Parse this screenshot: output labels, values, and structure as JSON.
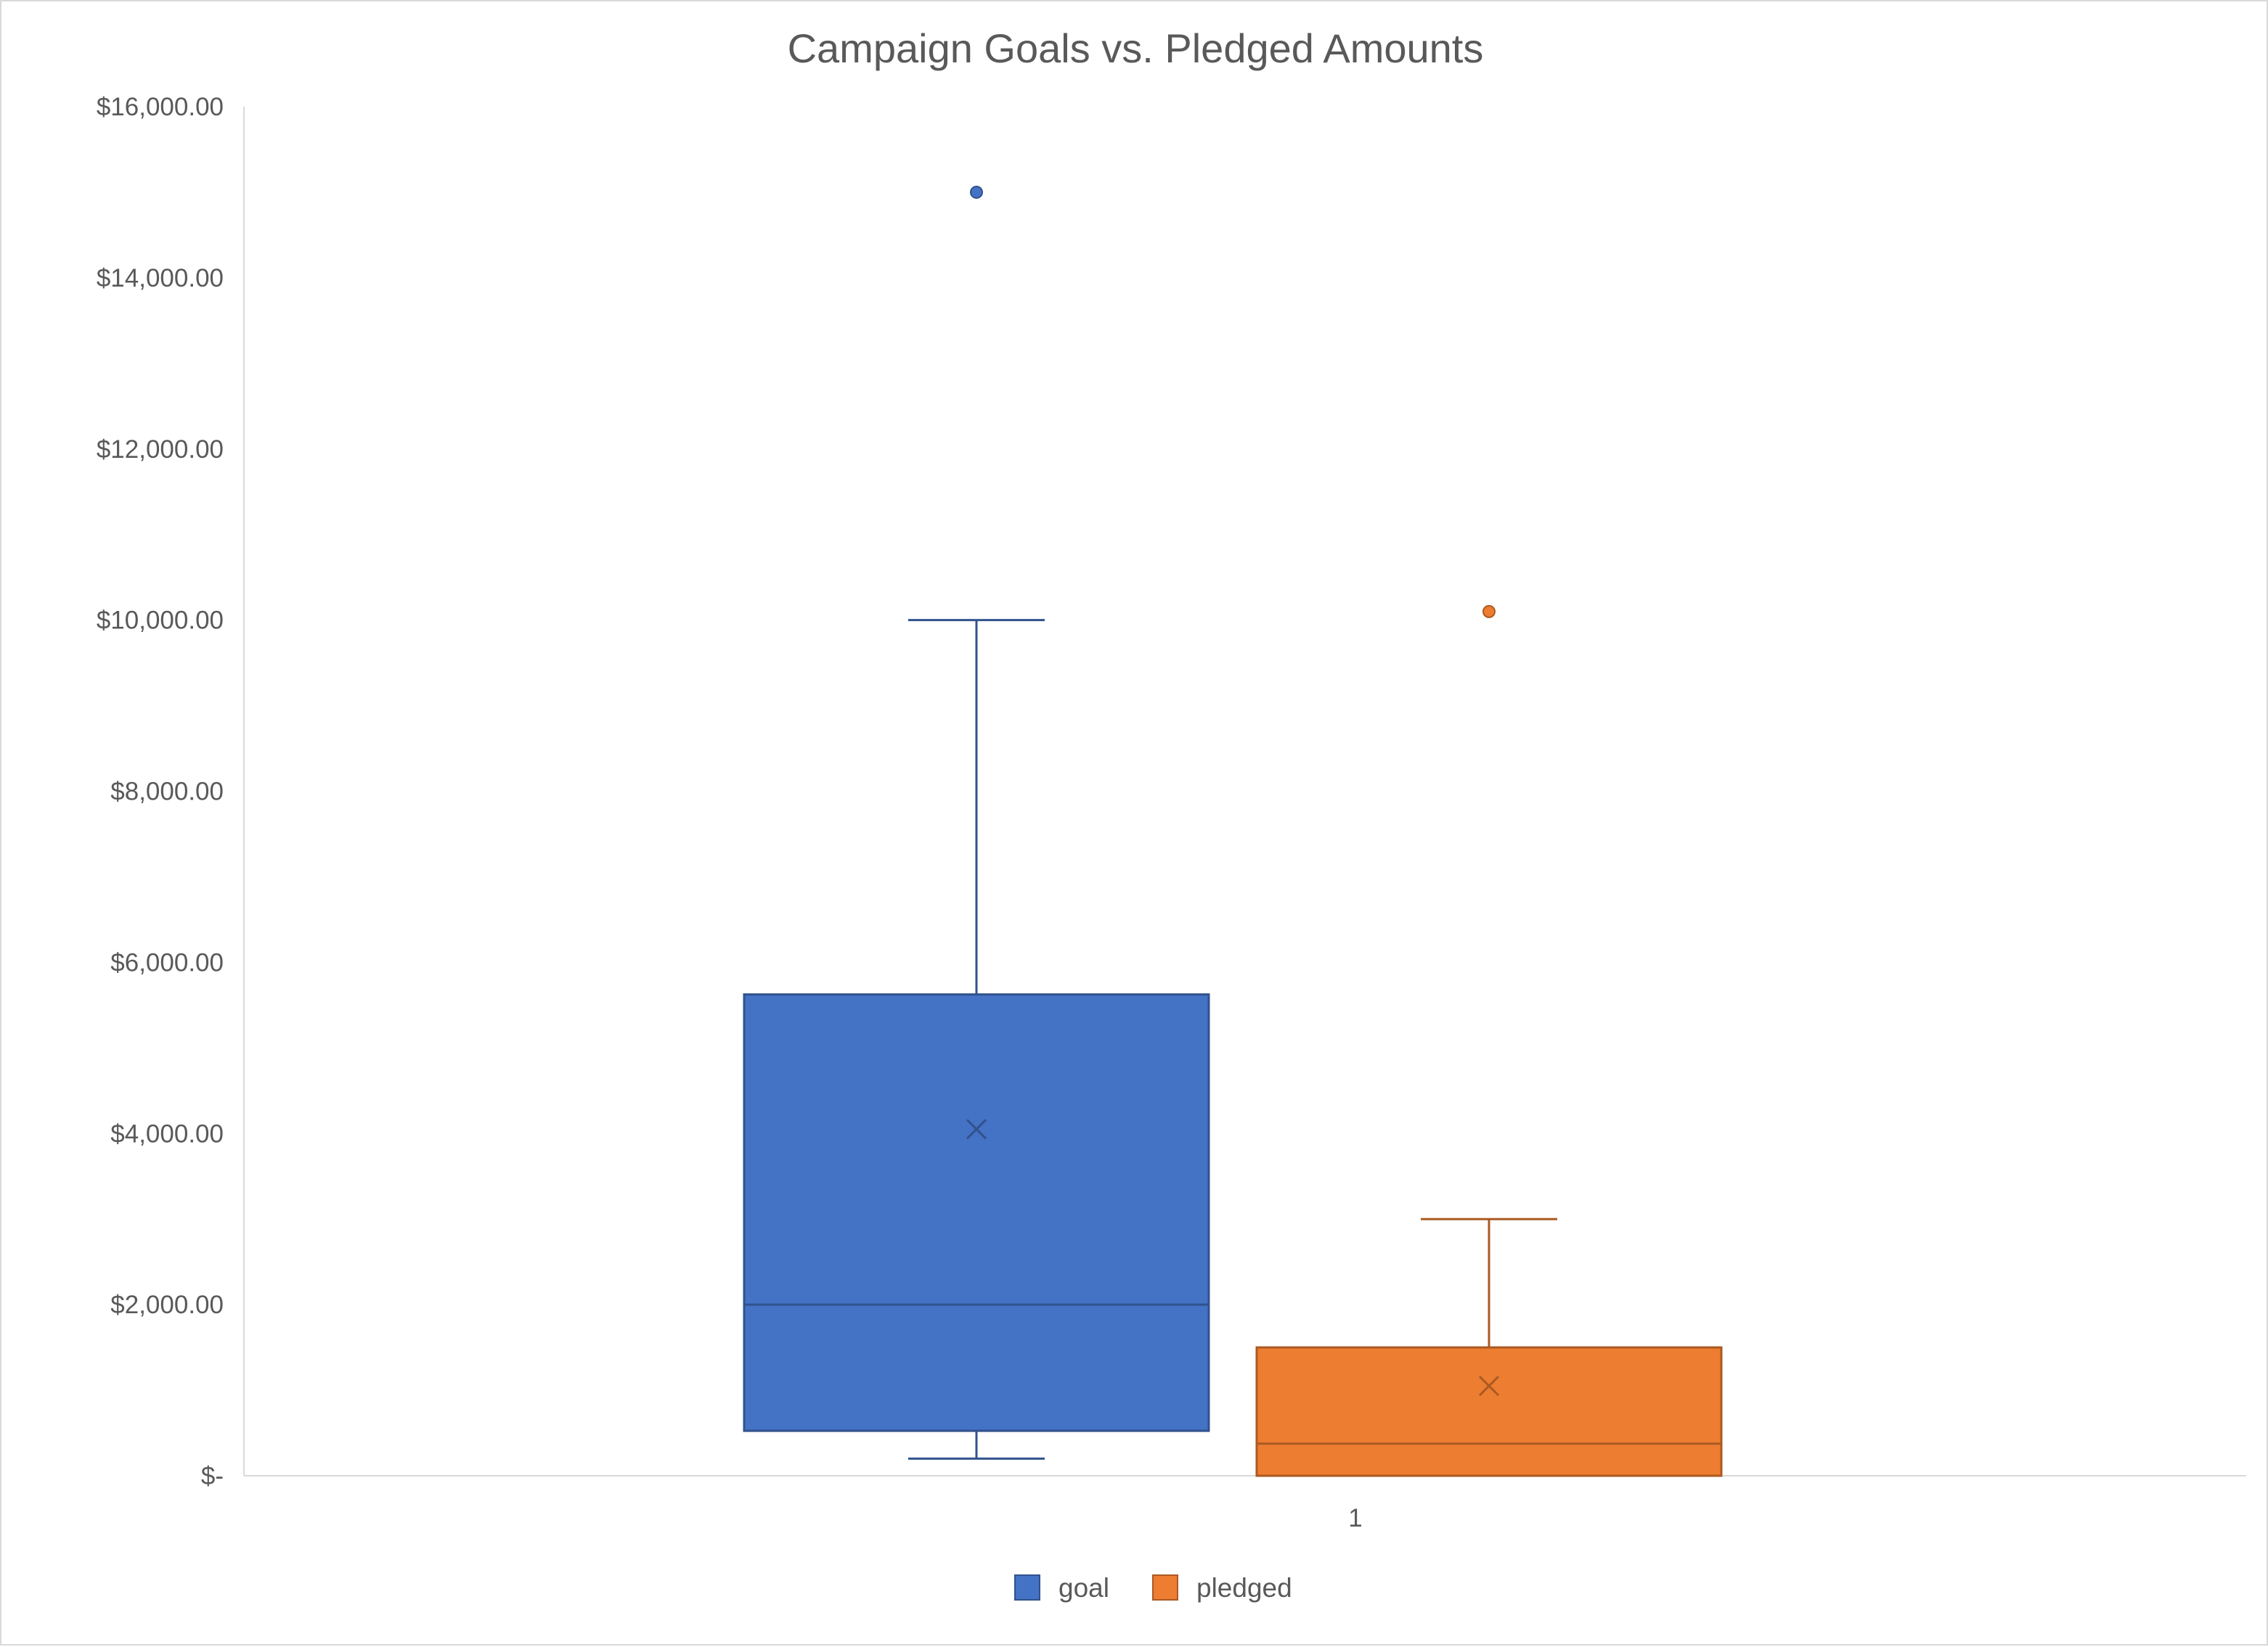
{
  "chart_data": {
    "type": "box",
    "title": "Campaign Goals vs. Pledged Amounts",
    "xlabel": "",
    "ylabel": "",
    "categories": [
      "1"
    ],
    "ylim": [
      0,
      16000
    ],
    "yticks": [
      0,
      2000,
      4000,
      6000,
      8000,
      10000,
      12000,
      14000,
      16000
    ],
    "ytick_labels": [
      "$-",
      "$2,000.00",
      "$4,000.00",
      "$6,000.00",
      "$8,000.00",
      "$10,000.00",
      "$12,000.00",
      "$14,000.00",
      "$16,000.00"
    ],
    "grid": false,
    "legend_position": "bottom",
    "series": [
      {
        "name": "goal",
        "color": "#4472c4",
        "whisker_low": 200,
        "q1": 525,
        "median": 2000,
        "q3": 5625,
        "whisker_high": 10000,
        "mean": 4050,
        "outliers": [
          15000
        ]
      },
      {
        "name": "pledged",
        "color": "#ed7d31",
        "whisker_low": 0,
        "q1": 0,
        "median": 375,
        "q3": 1500,
        "whisker_high": 3000,
        "mean": 1050,
        "outliers": [
          10100
        ]
      }
    ]
  }
}
